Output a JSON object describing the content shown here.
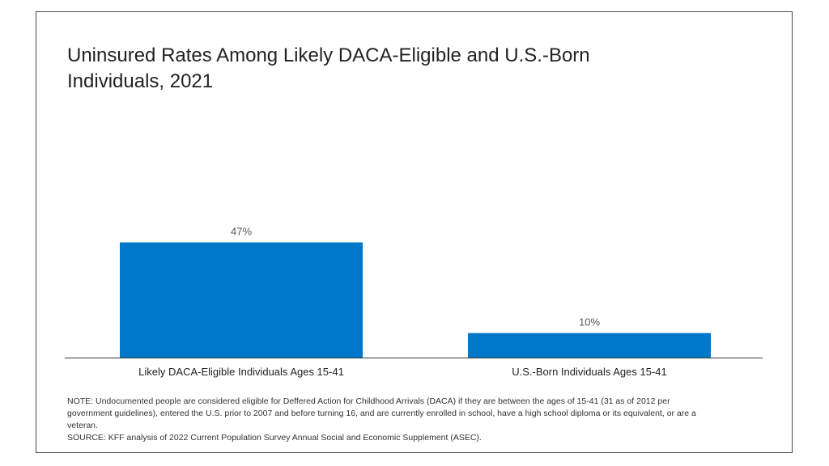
{
  "title": "Uninsured Rates Among Likely DACA-Eligible and U.S.-Born Individuals, 2021",
  "note": "NOTE: Undocumented people are considered eligible for Deffered Action for Childhood Arrivals (DACA) if they are between the ages of 15-41 (31 as of 2012 per government guidelines), entered the U.S. prior to 2007 and before turning 16, and are currently enrolled in school, have a high school diploma or its equivalent, or are a veteran.",
  "source": "SOURCE: KFF analysis of 2022 Current Population Survey Annual Social and Economic Supplement (ASEC).",
  "colors": {
    "bar": "#0077c8"
  },
  "chart_data": {
    "type": "bar",
    "title": "Uninsured Rates Among Likely DACA-Eligible and U.S.-Born Individuals, 2021",
    "categories": [
      "Likely DACA-Eligible Individuals Ages 15-41",
      "U.S.-Born Individuals Ages 15-41"
    ],
    "values": [
      47,
      10
    ],
    "data_labels": [
      "47%",
      "10%"
    ],
    "ylim": [
      0,
      100
    ],
    "grid": false,
    "legend": "none"
  }
}
